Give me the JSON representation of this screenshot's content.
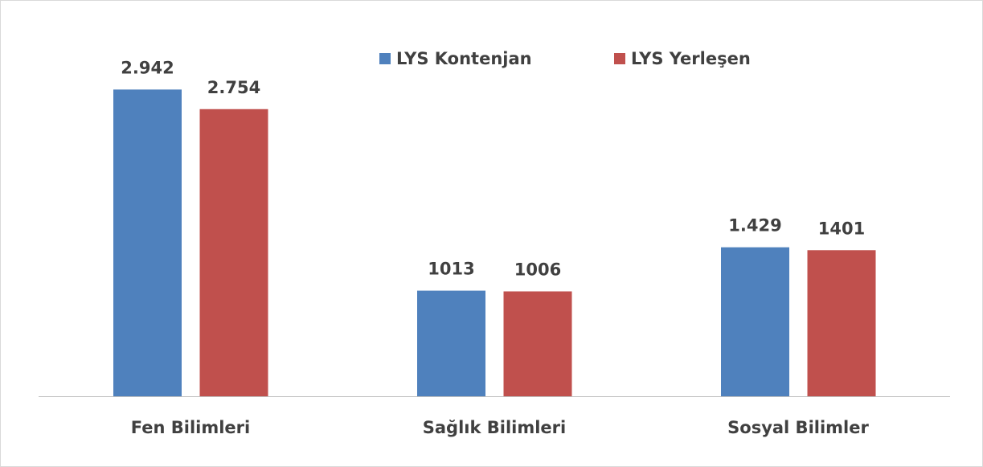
{
  "chart_data": {
    "type": "bar",
    "categories": [
      "Fen Bilimleri",
      "Sağlık Bilimleri",
      "Sosyal Bilimler"
    ],
    "series": [
      {
        "name": "LYS Kontenjan",
        "color": "#4f81bd",
        "values": [
          2942,
          1013,
          1429
        ],
        "value_labels": [
          "2.942",
          "1013",
          "1.429"
        ]
      },
      {
        "name": "LYS Yerleşen",
        "color": "#c0504d",
        "values": [
          2754,
          1006,
          1401
        ],
        "value_labels": [
          "2.754",
          "1006",
          "1401"
        ]
      }
    ],
    "ylim": [
      0,
      3500
    ],
    "legend": "top"
  }
}
